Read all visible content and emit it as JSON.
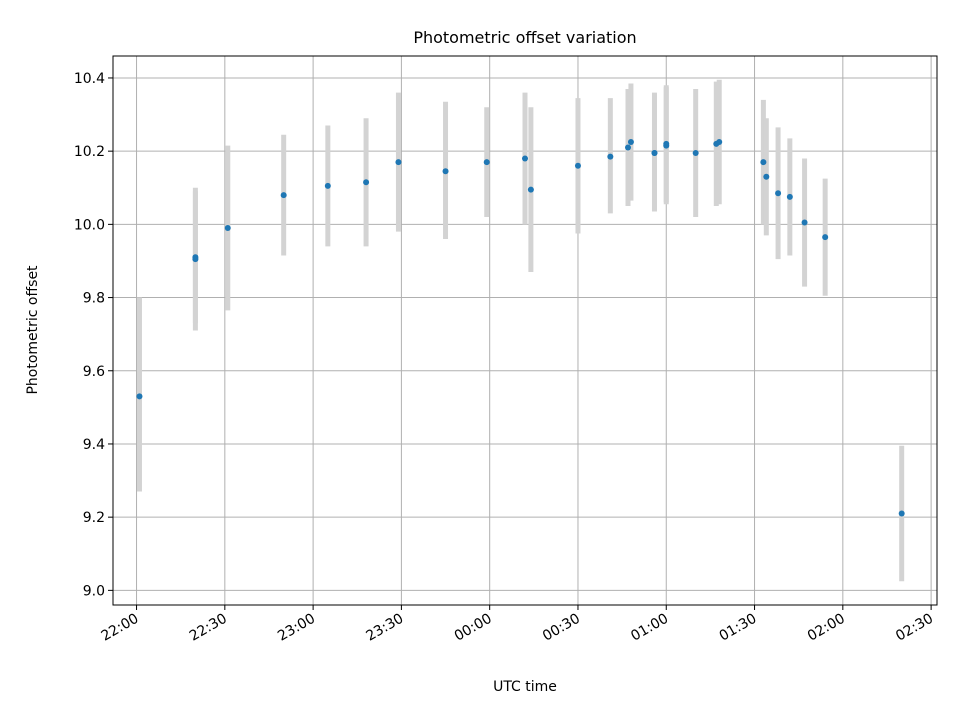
{
  "chart_data": {
    "type": "scatter",
    "title": "Photometric offset variation",
    "xlabel": "UTC time",
    "ylabel": "Photometric offset",
    "x_tick_labels": [
      "22:00",
      "22:30",
      "23:00",
      "23:30",
      "00:00",
      "00:30",
      "01:00",
      "01:30",
      "02:00",
      "02:30"
    ],
    "x_tick_times": [
      "2000-01-01T22:00",
      "2000-01-01T22:30",
      "2000-01-01T23:00",
      "2000-01-01T23:30",
      "2000-01-02T00:00",
      "2000-01-02T00:30",
      "2000-01-02T01:00",
      "2000-01-02T01:30",
      "2000-01-02T02:00",
      "2000-01-02T02:30"
    ],
    "xlim": [
      "2000-01-01T21:52",
      "2000-01-02T02:32"
    ],
    "ylim": [
      8.96,
      10.46
    ],
    "y_ticks": [
      9.0,
      9.2,
      9.4,
      9.6,
      9.8,
      10.0,
      10.2,
      10.4
    ],
    "y_tick_labels": [
      "9.0",
      "9.2",
      "9.4",
      "9.6",
      "9.8",
      "10.0",
      "10.2",
      "10.4"
    ],
    "grid": true,
    "point_color": "#1f77b4",
    "errorbar_color": "#d3d3d3",
    "points": [
      {
        "t": "2000-01-01T22:01",
        "y": 9.53,
        "lo": 9.27,
        "hi": 9.8
      },
      {
        "t": "2000-01-01T22:20",
        "y": 9.91,
        "lo": 9.73,
        "hi": 10.09
      },
      {
        "t": "2000-01-01T22:20",
        "y": 9.905,
        "lo": 9.71,
        "hi": 10.1
      },
      {
        "t": "2000-01-01T22:31",
        "y": 9.99,
        "lo": 9.765,
        "hi": 10.215
      },
      {
        "t": "2000-01-01T22:50",
        "y": 10.08,
        "lo": 9.915,
        "hi": 10.245
      },
      {
        "t": "2000-01-01T23:05",
        "y": 10.105,
        "lo": 9.94,
        "hi": 10.27
      },
      {
        "t": "2000-01-01T23:18",
        "y": 10.115,
        "lo": 9.94,
        "hi": 10.29
      },
      {
        "t": "2000-01-01T23:29",
        "y": 10.17,
        "lo": 9.98,
        "hi": 10.36
      },
      {
        "t": "2000-01-01T23:45",
        "y": 10.145,
        "lo": 9.96,
        "hi": 10.335
      },
      {
        "t": "2000-01-01T23:59",
        "y": 10.17,
        "lo": 10.02,
        "hi": 10.32
      },
      {
        "t": "2000-01-02T00:12",
        "y": 10.18,
        "lo": 10.0,
        "hi": 10.36
      },
      {
        "t": "2000-01-02T00:14",
        "y": 10.095,
        "lo": 9.87,
        "hi": 10.32
      },
      {
        "t": "2000-01-02T00:30",
        "y": 10.16,
        "lo": 9.975,
        "hi": 10.345
      },
      {
        "t": "2000-01-02T00:41",
        "y": 10.185,
        "lo": 10.03,
        "hi": 10.345
      },
      {
        "t": "2000-01-02T00:47",
        "y": 10.21,
        "lo": 10.05,
        "hi": 10.37
      },
      {
        "t": "2000-01-02T00:48",
        "y": 10.225,
        "lo": 10.065,
        "hi": 10.385
      },
      {
        "t": "2000-01-02T00:56",
        "y": 10.195,
        "lo": 10.035,
        "hi": 10.36
      },
      {
        "t": "2000-01-02T00:56",
        "y": 10.195,
        "lo": 10.04,
        "hi": 10.355
      },
      {
        "t": "2000-01-02T01:00",
        "y": 10.22,
        "lo": 10.06,
        "hi": 10.38
      },
      {
        "t": "2000-01-02T01:00",
        "y": 10.215,
        "lo": 10.055,
        "hi": 10.375
      },
      {
        "t": "2000-01-02T01:10",
        "y": 10.195,
        "lo": 10.02,
        "hi": 10.37
      },
      {
        "t": "2000-01-02T01:17",
        "y": 10.22,
        "lo": 10.05,
        "hi": 10.39
      },
      {
        "t": "2000-01-02T01:18",
        "y": 10.225,
        "lo": 10.055,
        "hi": 10.395
      },
      {
        "t": "2000-01-02T01:33",
        "y": 10.17,
        "lo": 10.0,
        "hi": 10.34
      },
      {
        "t": "2000-01-02T01:34",
        "y": 10.13,
        "lo": 9.97,
        "hi": 10.29
      },
      {
        "t": "2000-01-02T01:38",
        "y": 10.085,
        "lo": 9.905,
        "hi": 10.265
      },
      {
        "t": "2000-01-02T01:42",
        "y": 10.075,
        "lo": 9.915,
        "hi": 10.235
      },
      {
        "t": "2000-01-02T01:47",
        "y": 10.005,
        "lo": 9.83,
        "hi": 10.18
      },
      {
        "t": "2000-01-02T01:54",
        "y": 9.965,
        "lo": 9.805,
        "hi": 10.125
      },
      {
        "t": "2000-01-02T02:20",
        "y": 9.21,
        "lo": 9.025,
        "hi": 9.395
      }
    ]
  }
}
